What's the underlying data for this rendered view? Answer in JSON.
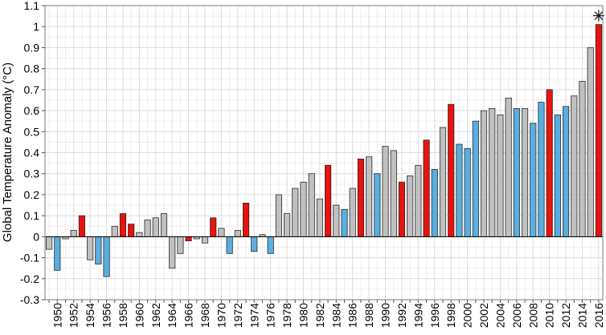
{
  "chart_data": {
    "type": "bar",
    "title": "",
    "xlabel": "",
    "ylabel": "Global Temperature Anomaly (°C)",
    "ylim": [
      -0.3,
      1.1
    ],
    "yticks": [
      "-0.3",
      "-0.2",
      "-0.1",
      "0",
      "0.1",
      "0.2",
      "0.3",
      "0.4",
      "0.5",
      "0.6",
      "0.7",
      "0.8",
      "0.9",
      "1",
      "1.1"
    ],
    "xtick_labels": [
      "1950",
      "1952",
      "1954",
      "1956",
      "1958",
      "1960",
      "1962",
      "1964",
      "1966",
      "1968",
      "1970",
      "1972",
      "1974",
      "1976",
      "1978",
      "1980",
      "1982",
      "1984",
      "1986",
      "1988",
      "1990",
      "1992",
      "1994",
      "1996",
      "1998",
      "2000",
      "2002",
      "2004",
      "2006",
      "2008",
      "2010",
      "2012",
      "2014",
      "2016"
    ],
    "grid": true,
    "colors": {
      "el_nino": "#e8120e",
      "la_nina": "#5aaee0",
      "neutral": "#c0c0c0"
    },
    "marker": {
      "year": 2016,
      "symbol": "asterisk"
    },
    "bars": [
      {
        "year": 1949,
        "value": -0.06,
        "phase": "neutral"
      },
      {
        "year": 1950,
        "value": -0.16,
        "phase": "la_nina"
      },
      {
        "year": 1951,
        "value": -0.01,
        "phase": "neutral"
      },
      {
        "year": 1952,
        "value": 0.03,
        "phase": "neutral"
      },
      {
        "year": 1953,
        "value": 0.1,
        "phase": "el_nino"
      },
      {
        "year": 1954,
        "value": -0.11,
        "phase": "neutral"
      },
      {
        "year": 1955,
        "value": -0.13,
        "phase": "la_nina"
      },
      {
        "year": 1956,
        "value": -0.19,
        "phase": "la_nina"
      },
      {
        "year": 1957,
        "value": 0.05,
        "phase": "neutral"
      },
      {
        "year": 1958,
        "value": 0.11,
        "phase": "el_nino"
      },
      {
        "year": 1959,
        "value": 0.06,
        "phase": "el_nino"
      },
      {
        "year": 1960,
        "value": 0.02,
        "phase": "neutral"
      },
      {
        "year": 1961,
        "value": 0.08,
        "phase": "neutral"
      },
      {
        "year": 1962,
        "value": 0.09,
        "phase": "neutral"
      },
      {
        "year": 1963,
        "value": 0.11,
        "phase": "neutral"
      },
      {
        "year": 1964,
        "value": -0.15,
        "phase": "neutral"
      },
      {
        "year": 1965,
        "value": -0.08,
        "phase": "neutral"
      },
      {
        "year": 1966,
        "value": -0.02,
        "phase": "el_nino"
      },
      {
        "year": 1967,
        "value": -0.01,
        "phase": "neutral"
      },
      {
        "year": 1968,
        "value": -0.03,
        "phase": "neutral"
      },
      {
        "year": 1969,
        "value": 0.09,
        "phase": "el_nino"
      },
      {
        "year": 1970,
        "value": 0.04,
        "phase": "neutral"
      },
      {
        "year": 1971,
        "value": -0.08,
        "phase": "la_nina"
      },
      {
        "year": 1972,
        "value": 0.03,
        "phase": "neutral"
      },
      {
        "year": 1973,
        "value": 0.16,
        "phase": "el_nino"
      },
      {
        "year": 1974,
        "value": -0.07,
        "phase": "la_nina"
      },
      {
        "year": 1975,
        "value": 0.01,
        "phase": "neutral"
      },
      {
        "year": 1976,
        "value": -0.08,
        "phase": "la_nina"
      },
      {
        "year": 1977,
        "value": 0.2,
        "phase": "neutral"
      },
      {
        "year": 1978,
        "value": 0.11,
        "phase": "neutral"
      },
      {
        "year": 1979,
        "value": 0.23,
        "phase": "neutral"
      },
      {
        "year": 1980,
        "value": 0.26,
        "phase": "neutral"
      },
      {
        "year": 1981,
        "value": 0.3,
        "phase": "neutral"
      },
      {
        "year": 1982,
        "value": 0.18,
        "phase": "neutral"
      },
      {
        "year": 1983,
        "value": 0.34,
        "phase": "el_nino"
      },
      {
        "year": 1984,
        "value": 0.15,
        "phase": "neutral"
      },
      {
        "year": 1985,
        "value": 0.13,
        "phase": "la_nina"
      },
      {
        "year": 1986,
        "value": 0.23,
        "phase": "neutral"
      },
      {
        "year": 1987,
        "value": 0.37,
        "phase": "el_nino"
      },
      {
        "year": 1988,
        "value": 0.38,
        "phase": "neutral"
      },
      {
        "year": 1989,
        "value": 0.3,
        "phase": "la_nina"
      },
      {
        "year": 1990,
        "value": 0.43,
        "phase": "neutral"
      },
      {
        "year": 1991,
        "value": 0.41,
        "phase": "neutral"
      },
      {
        "year": 1992,
        "value": 0.26,
        "phase": "el_nino"
      },
      {
        "year": 1993,
        "value": 0.29,
        "phase": "neutral"
      },
      {
        "year": 1994,
        "value": 0.34,
        "phase": "neutral"
      },
      {
        "year": 1995,
        "value": 0.46,
        "phase": "el_nino"
      },
      {
        "year": 1996,
        "value": 0.32,
        "phase": "la_nina"
      },
      {
        "year": 1997,
        "value": 0.52,
        "phase": "neutral"
      },
      {
        "year": 1998,
        "value": 0.63,
        "phase": "el_nino"
      },
      {
        "year": 1999,
        "value": 0.44,
        "phase": "la_nina"
      },
      {
        "year": 2000,
        "value": 0.42,
        "phase": "la_nina"
      },
      {
        "year": 2001,
        "value": 0.55,
        "phase": "la_nina"
      },
      {
        "year": 2002,
        "value": 0.6,
        "phase": "neutral"
      },
      {
        "year": 2003,
        "value": 0.61,
        "phase": "neutral"
      },
      {
        "year": 2004,
        "value": 0.58,
        "phase": "neutral"
      },
      {
        "year": 2005,
        "value": 0.66,
        "phase": "neutral"
      },
      {
        "year": 2006,
        "value": 0.61,
        "phase": "la_nina"
      },
      {
        "year": 2007,
        "value": 0.61,
        "phase": "neutral"
      },
      {
        "year": 2008,
        "value": 0.54,
        "phase": "la_nina"
      },
      {
        "year": 2009,
        "value": 0.64,
        "phase": "la_nina"
      },
      {
        "year": 2010,
        "value": 0.7,
        "phase": "el_nino"
      },
      {
        "year": 2011,
        "value": 0.58,
        "phase": "la_nina"
      },
      {
        "year": 2012,
        "value": 0.62,
        "phase": "la_nina"
      },
      {
        "year": 2013,
        "value": 0.67,
        "phase": "neutral"
      },
      {
        "year": 2014,
        "value": 0.74,
        "phase": "neutral"
      },
      {
        "year": 2015,
        "value": 0.9,
        "phase": "neutral"
      },
      {
        "year": 2016,
        "value": 1.01,
        "phase": "el_nino"
      }
    ]
  }
}
